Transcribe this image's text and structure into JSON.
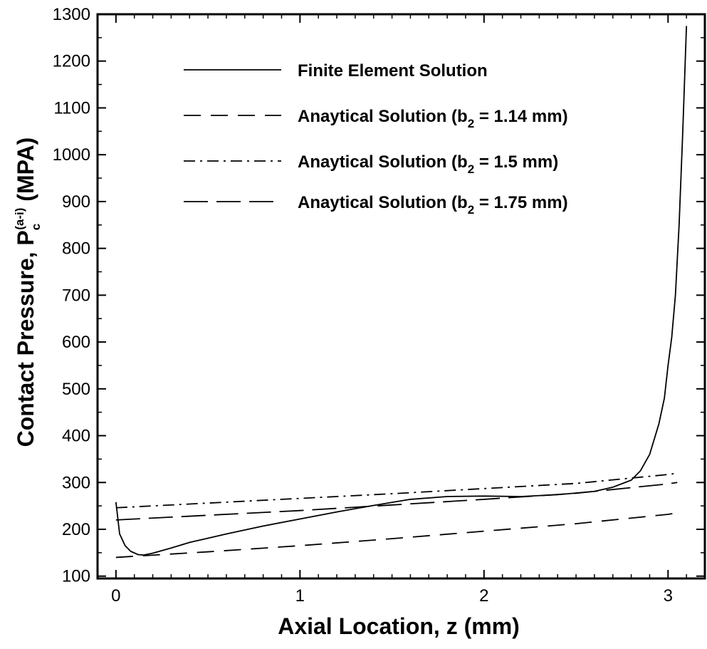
{
  "chart_data": {
    "type": "line",
    "xlabel": "Axial Location, z (mm)",
    "ylabel": {
      "prefix": "Contact Pressure, P",
      "subscript": "c",
      "superscript": "(a-i)",
      "suffix": " (MPA)"
    },
    "xlim": [
      -0.1,
      3.2
    ],
    "ylim": [
      95,
      1300
    ],
    "xticks": [
      "0",
      "1",
      "2",
      "3"
    ],
    "yticks": [
      "100",
      "200",
      "300",
      "400",
      "500",
      "600",
      "700",
      "800",
      "900",
      "1000",
      "1100",
      "1200",
      "1300"
    ],
    "grid": false,
    "legend_position": "top-left",
    "series": [
      {
        "name": "Finite Element Solution",
        "dash": "solid",
        "x": [
          0.0,
          0.02,
          0.05,
          0.08,
          0.12,
          0.15,
          0.2,
          0.3,
          0.4,
          0.5,
          0.6,
          0.8,
          1.0,
          1.2,
          1.4,
          1.6,
          1.8,
          2.0,
          2.2,
          2.4,
          2.6,
          2.7,
          2.8,
          2.85,
          2.9,
          2.95,
          2.98,
          3.0,
          3.02,
          3.04,
          3.06,
          3.08,
          3.1
        ],
        "y": [
          258,
          190,
          165,
          153,
          146,
          145,
          149,
          160,
          172,
          181,
          190,
          207,
          222,
          237,
          251,
          264,
          270,
          271,
          270,
          274,
          281,
          290,
          305,
          325,
          360,
          425,
          480,
          550,
          610,
          700,
          850,
          1050,
          1275
        ]
      },
      {
        "name": "Anaytical Solution (b2 = 1.14 mm)",
        "dash": "short-dash",
        "x": [
          0.0,
          0.5,
          1.0,
          1.5,
          2.0,
          2.5,
          3.0,
          3.05
        ],
        "y": [
          140,
          152,
          165,
          180,
          196,
          212,
          232,
          235
        ]
      },
      {
        "name": "Anaytical Solution (b2 = 1.5 mm)",
        "dash": "dash-dot",
        "x": [
          0.0,
          0.5,
          1.0,
          1.5,
          2.0,
          2.5,
          3.0,
          3.05
        ],
        "y": [
          246,
          256,
          266,
          276,
          287,
          298,
          317,
          320
        ]
      },
      {
        "name": "Anaytical Solution (b2 = 1.75 mm)",
        "dash": "long-dash",
        "x": [
          0.0,
          0.5,
          1.0,
          1.5,
          2.0,
          2.5,
          3.0,
          3.05
        ],
        "y": [
          220,
          230,
          240,
          252,
          264,
          277,
          297,
          300
        ]
      }
    ],
    "legend_entries": [
      {
        "prefix": "Finite Element Solution",
        "sub": "",
        "suffix": ""
      },
      {
        "prefix": "Anaytical Solution (b",
        "sub": "2",
        "suffix": " = 1.14 mm)"
      },
      {
        "prefix": "Anaytical Solution (b",
        "sub": "2",
        "suffix": " = 1.5 mm)"
      },
      {
        "prefix": "Anaytical Solution (b",
        "sub": "2",
        "suffix": " = 1.75 mm)"
      }
    ]
  }
}
